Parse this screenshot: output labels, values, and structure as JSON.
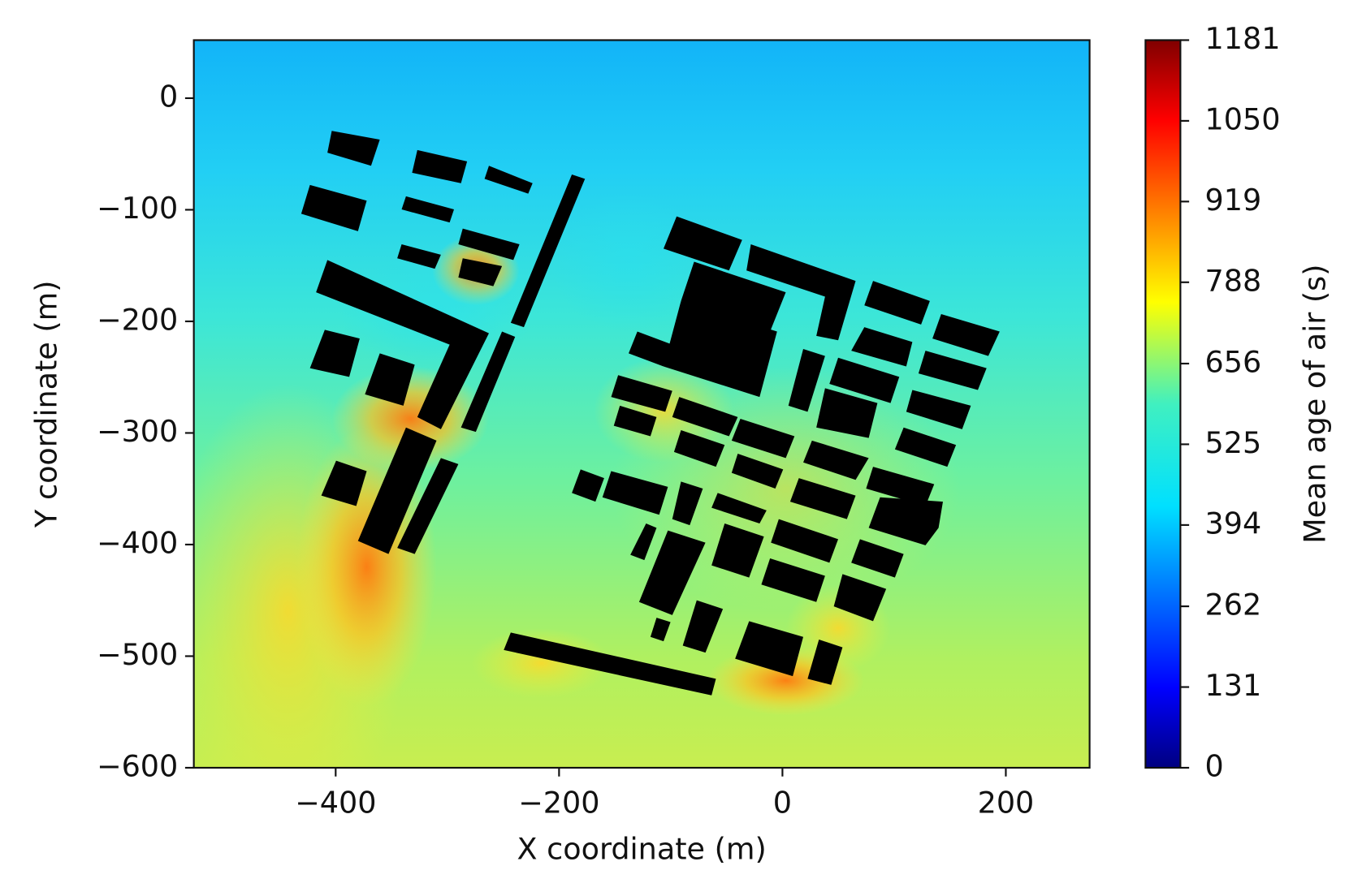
{
  "chart_data": {
    "type": "heatmap",
    "xlabel": "X coordinate (m)",
    "ylabel": "Y coordinate (m)",
    "xlim": [
      -527,
      275
    ],
    "ylim": [
      -600,
      52
    ],
    "xticks": [
      {
        "value": -400,
        "label": "−400"
      },
      {
        "value": -200,
        "label": "−200"
      },
      0,
      200
    ],
    "yticks": [
      0,
      {
        "value": -100,
        "label": "−100"
      },
      {
        "value": -200,
        "label": "−200"
      },
      {
        "value": -300,
        "label": "−300"
      },
      {
        "value": -400,
        "label": "−400"
      },
      {
        "value": -500,
        "label": "−500"
      },
      {
        "value": -600,
        "label": "−600"
      }
    ],
    "colormap": "jet",
    "colorbar_label": "Mean age of air (s)",
    "clim": [
      0,
      1181
    ],
    "cticks": [
      0,
      131,
      262,
      394,
      525,
      656,
      788,
      919,
      1050,
      1181
    ]
  }
}
